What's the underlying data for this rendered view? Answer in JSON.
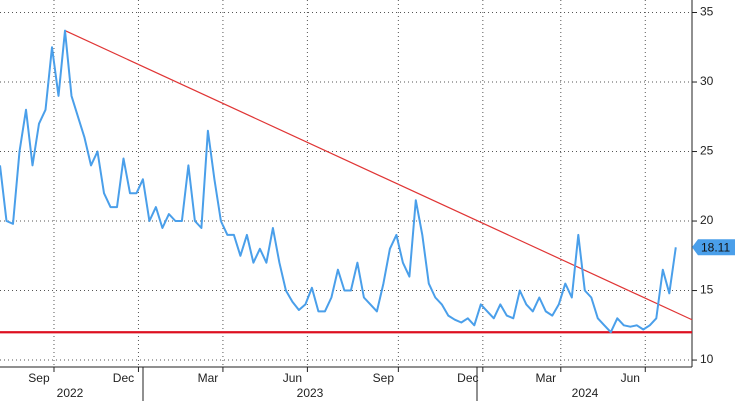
{
  "chart_data": {
    "type": "line",
    "categories": [
      null,
      null,
      null,
      null,
      null,
      null,
      "Sep",
      null,
      null,
      null,
      null,
      null,
      null,
      null,
      null,
      null,
      null,
      null,
      null,
      "Dec",
      null,
      null,
      null,
      null,
      null,
      null,
      null,
      null,
      null,
      null,
      null,
      null,
      "Mar",
      null,
      null,
      null,
      null,
      null,
      null,
      null,
      null,
      null,
      null,
      null,
      null,
      "Jun",
      null,
      null,
      null,
      null,
      null,
      null,
      null,
      null,
      null,
      null,
      null,
      null,
      null,
      "Sep",
      null,
      null,
      null,
      null,
      null,
      null,
      null,
      null,
      null,
      null,
      null,
      null,
      "Dec",
      null,
      null,
      null,
      null,
      null,
      null,
      null,
      null,
      null,
      null,
      null,
      "Mar",
      null,
      null,
      null,
      null,
      null,
      null,
      null,
      null,
      null,
      null,
      null,
      null,
      "Jun",
      null,
      null,
      null,
      null,
      null,
      null,
      null
    ],
    "year_labels": [
      "2022",
      "2023",
      "2024"
    ],
    "series": [
      {
        "color": "#4a9fea",
        "values": [
          24,
          20,
          19.8,
          25,
          28,
          24,
          27,
          28,
          32.5,
          29,
          33.7,
          29,
          27.5,
          26,
          24,
          25,
          22,
          21,
          21,
          24.5,
          22,
          22,
          23,
          20,
          21,
          19.5,
          20.5,
          20,
          20,
          24,
          20,
          19.5,
          26.5,
          23,
          20,
          19,
          19,
          17.5,
          19,
          17,
          18,
          17,
          19.5,
          17,
          15,
          14.2,
          13.6,
          14,
          15.2,
          13.5,
          13.5,
          14.5,
          16.5,
          15,
          15,
          17,
          14.5,
          14,
          13.5,
          15.5,
          18,
          19,
          17,
          16,
          21.5,
          19,
          15.5,
          14.5,
          14,
          13.2,
          12.9,
          12.7,
          13,
          12.5,
          14,
          13.5,
          13,
          14,
          13.2,
          13,
          15,
          14,
          13.5,
          14.5,
          13.5,
          13.2,
          14,
          15.5,
          14.5,
          19,
          15,
          14.5,
          13,
          12.5,
          12,
          13,
          12.5,
          12.4,
          12.5,
          12.2,
          12.5,
          13,
          16.5,
          14.8,
          18.11
        ]
      }
    ],
    "last_value_label": "18.11",
    "trendline": {
      "x": [
        10,
        106.5
      ],
      "y": [
        33.7,
        12.9
      ],
      "color": "#e03535"
    },
    "support_level": {
      "value": 12,
      "color": "#dd1020"
    },
    "xlim": [
      0,
      106.5
    ],
    "ylim": [
      9.5,
      35.9
    ],
    "yticks": [
      10,
      15,
      20,
      25,
      30,
      35
    ],
    "grid": true
  }
}
